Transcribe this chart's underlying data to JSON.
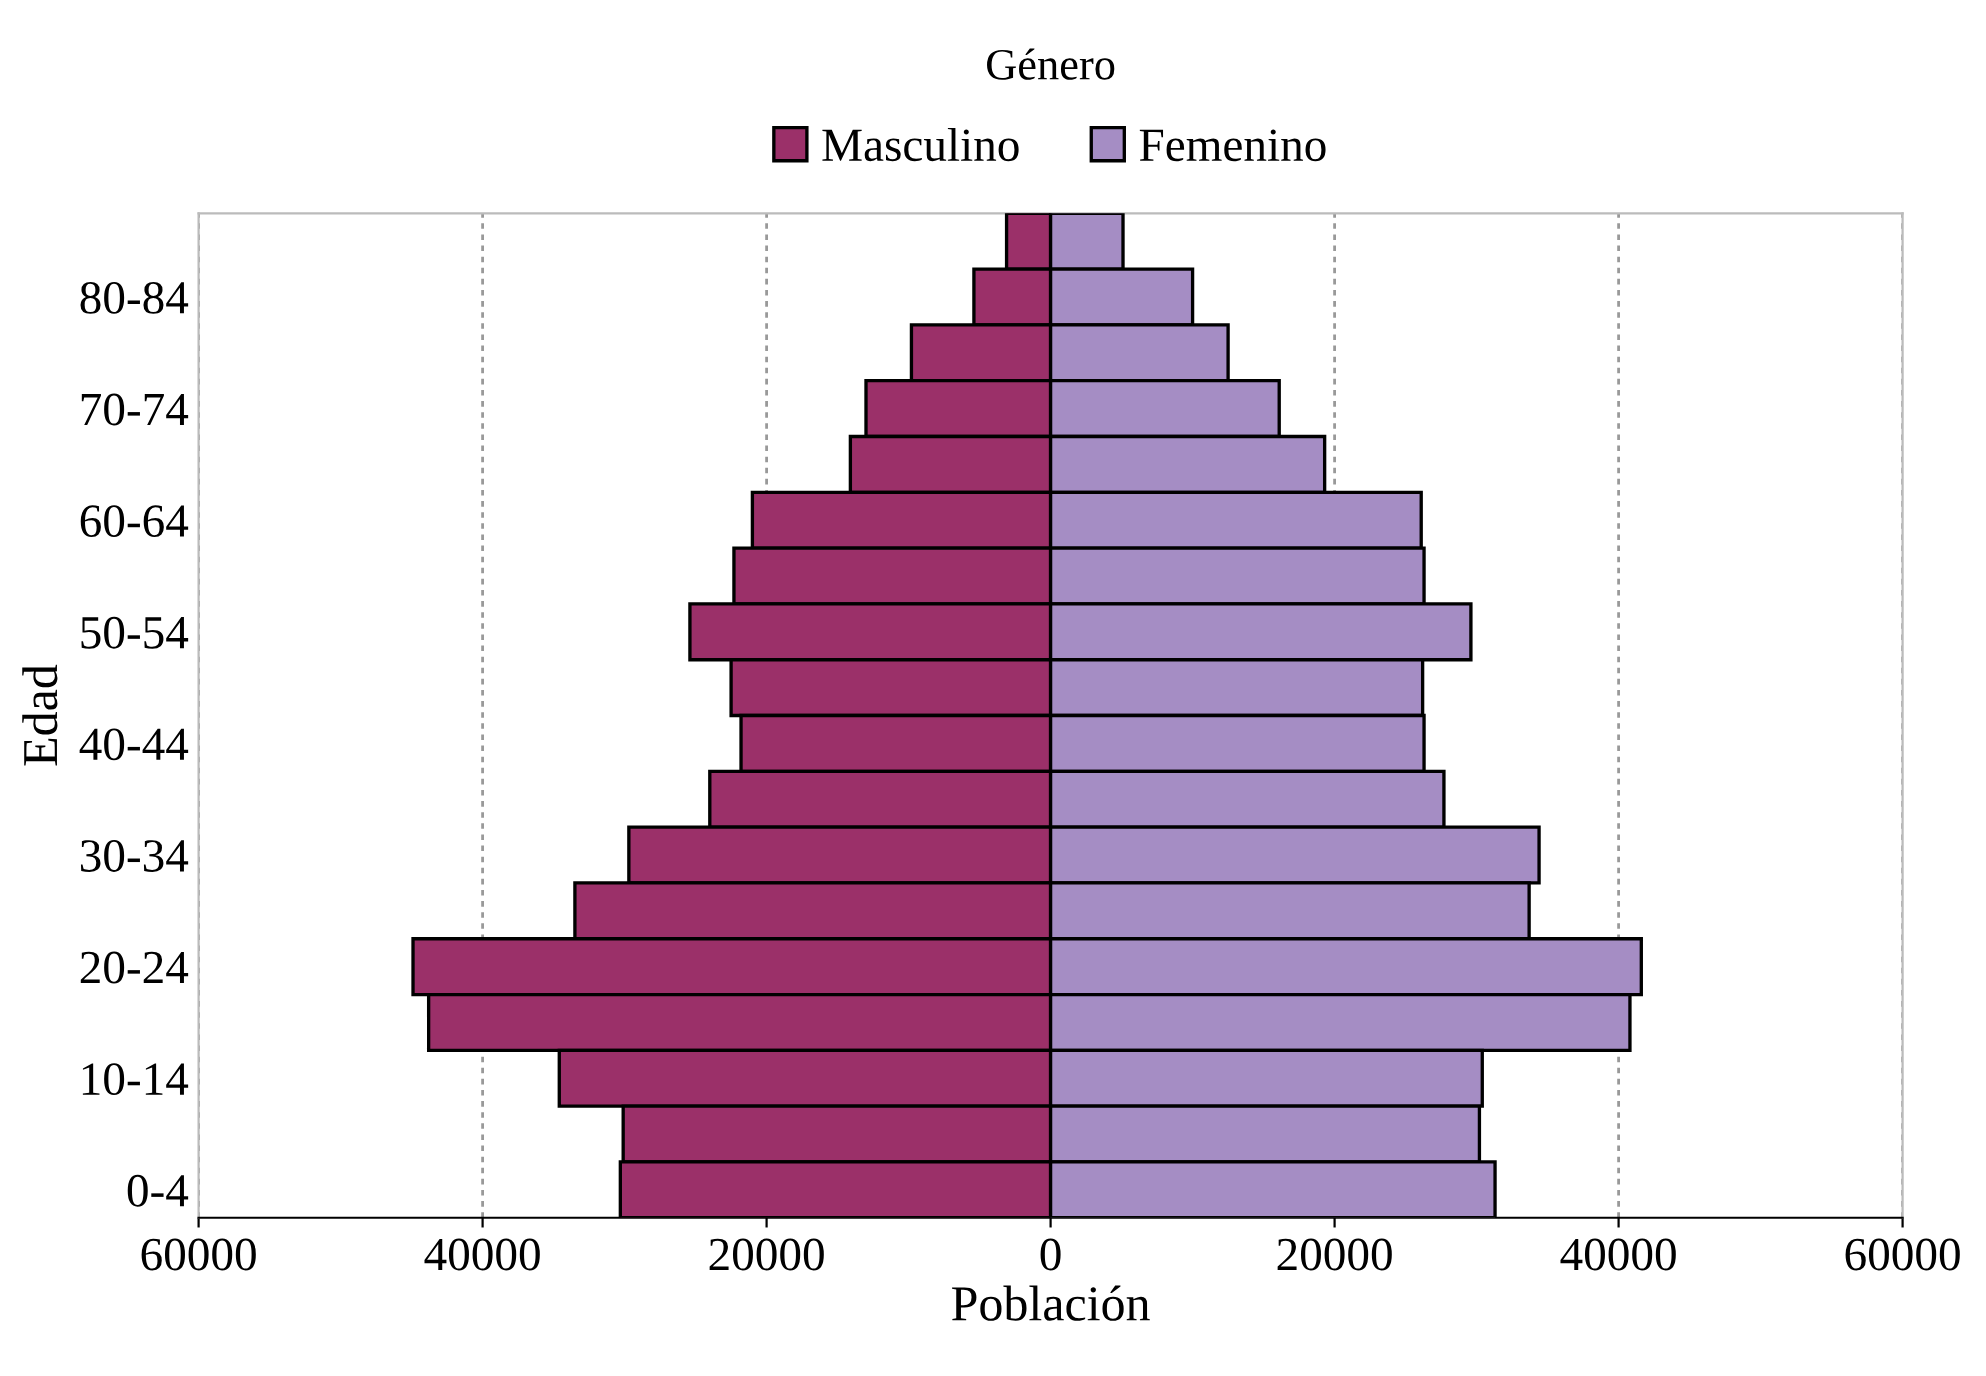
{
  "chart_data": {
    "type": "bar",
    "orientation": "horizontal",
    "xlabel": "Población",
    "ylabel": "Edad",
    "legend_title": "Género",
    "legend": "top",
    "stacked": true,
    "categories": [
      null,
      "80-84",
      null,
      "70-74",
      null,
      "60-64",
      null,
      "50-54",
      null,
      "40-44",
      null,
      "30-34",
      null,
      "20-24",
      null,
      "10-14",
      null,
      "0-4"
    ],
    "series": [
      {
        "name": "Masculino",
        "color": "#9b3069",
        "values": [
          -3100,
          -5400,
          -9800,
          -13000,
          -14100,
          -21000,
          -22300,
          -25400,
          -22500,
          -21800,
          -24000,
          -29700,
          -33500,
          -44900,
          -43800,
          -34600,
          -30100,
          -30300
        ]
      },
      {
        "name": "Femenino",
        "color": "#a58dc4",
        "values": [
          5100,
          10000,
          12500,
          16100,
          19300,
          26100,
          26300,
          29600,
          26200,
          26300,
          27700,
          34400,
          33700,
          41600,
          40800,
          30400,
          30200,
          31300
        ]
      }
    ],
    "xlim": [
      -60000,
      60000
    ],
    "xticks": [
      {
        "value": -60000,
        "label": "60000"
      },
      {
        "value": -40000,
        "label": "40000"
      },
      {
        "value": -20000,
        "label": "20000"
      },
      0,
      20000,
      40000,
      60000
    ],
    "grid": "x"
  }
}
